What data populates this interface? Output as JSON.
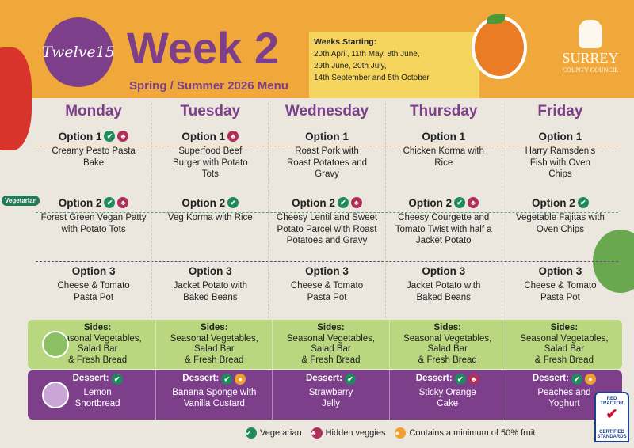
{
  "header": {
    "logo": "Twelve15",
    "title": "Week 2",
    "subtitle": "Spring / Summer 2026 Menu",
    "weeks_label": "Weeks Starting:",
    "weeks_lines": [
      "20th April, 11th  May, 8th June,",
      "29th June, 20th July,",
      "14th September and 5th October"
    ],
    "council": "SURREY",
    "council_sub": "COUNTY COUNCIL"
  },
  "vegetarian_tag": "Vegetarian",
  "colors": {
    "purple": "#7d3f8a",
    "orange": "#f1a83a",
    "green": "#1f8a5e",
    "hidden": "#b0305a",
    "sides": "#b9d77e"
  },
  "days": [
    {
      "name": "Monday",
      "options": [
        {
          "label": "Option 1",
          "dish": "Creamy Pesto Pasta Bake",
          "icons": [
            "vegetarian",
            "hidden-veggies"
          ]
        },
        {
          "label": "Option 2",
          "dish": "Forest Green Vegan Patty with Potato Tots",
          "icons": [
            "vegetarian",
            "hidden-veggies"
          ]
        },
        {
          "label": "Option 3",
          "dish": "Cheese & Tomato Pasta Pot",
          "icons": []
        }
      ],
      "sides_label": "Sides:",
      "sides": [
        "Seasonal Vegetables,",
        "Salad Bar",
        "& Fresh Bread"
      ],
      "dessert_label": "Dessert:",
      "dessert": [
        "Lemon",
        "Shortbread"
      ],
      "dessert_icons": [
        "vegetarian"
      ]
    },
    {
      "name": "Tuesday",
      "options": [
        {
          "label": "Option 1",
          "dish": "Superfood Beef Burger with Potato Tots",
          "icons": [
            "hidden-veggies"
          ]
        },
        {
          "label": "Option 2",
          "dish": "Veg Korma with Rice",
          "icons": [
            "vegetarian"
          ]
        },
        {
          "label": "Option 3",
          "dish": "Jacket Potato with Baked Beans",
          "icons": []
        }
      ],
      "sides_label": "Sides:",
      "sides": [
        "Seasonal Vegetables,",
        "Salad Bar",
        "& Fresh Bread"
      ],
      "dessert_label": "Dessert:",
      "dessert": [
        "Banana Sponge with",
        "Vanilla Custard"
      ],
      "dessert_icons": [
        "vegetarian",
        "fruit"
      ]
    },
    {
      "name": "Wednesday",
      "options": [
        {
          "label": "Option 1",
          "dish": "Roast Pork with Roast Potatoes and Gravy",
          "icons": []
        },
        {
          "label": "Option 2",
          "dish": "Cheesy Lentil and Sweet Potato Parcel with Roast Potatoes and Gravy",
          "icons": [
            "vegetarian",
            "hidden-veggies"
          ]
        },
        {
          "label": "Option 3",
          "dish": "Cheese & Tomato Pasta Pot",
          "icons": []
        }
      ],
      "sides_label": "Sides:",
      "sides": [
        "Seasonal Vegetables,",
        "Salad Bar",
        "& Fresh Bread"
      ],
      "dessert_label": "Dessert:",
      "dessert": [
        "Strawberry",
        "Jelly"
      ],
      "dessert_icons": [
        "vegetarian"
      ]
    },
    {
      "name": "Thursday",
      "options": [
        {
          "label": "Option 1",
          "dish": "Chicken Korma with Rice",
          "icons": []
        },
        {
          "label": "Option 2",
          "dish": "Cheesy Courgette and Tomato Twist with half a Jacket Potato",
          "icons": [
            "vegetarian",
            "hidden-veggies"
          ]
        },
        {
          "label": "Option 3",
          "dish": "Jacket Potato with Baked Beans",
          "icons": []
        }
      ],
      "sides_label": "Sides:",
      "sides": [
        "Seasonal Vegetables,",
        "Salad Bar",
        "& Fresh Bread"
      ],
      "dessert_label": "Dessert:",
      "dessert": [
        "Sticky Orange",
        "Cake"
      ],
      "dessert_icons": [
        "vegetarian",
        "hidden-veggies"
      ]
    },
    {
      "name": "Friday",
      "options": [
        {
          "label": "Option 1",
          "dish": "Harry Ramsden’s Fish with Oven Chips",
          "icons": []
        },
        {
          "label": "Option 2",
          "dish": "Vegetable Fajitas with Oven Chips",
          "icons": [
            "vegetarian"
          ]
        },
        {
          "label": "Option 3",
          "dish": "Cheese & Tomato Pasta Pot",
          "icons": []
        }
      ],
      "sides_label": "Sides:",
      "sides": [
        "Seasonal Vegetables,",
        "Salad Bar",
        "& Fresh Bread"
      ],
      "dessert_label": "Dessert:",
      "dessert": [
        "Peaches and",
        "Yoghurt"
      ],
      "dessert_icons": [
        "vegetarian",
        "fruit"
      ]
    }
  ],
  "legend": [
    {
      "icon": "vegetarian",
      "label": "Vegetarian"
    },
    {
      "icon": "hidden-veggies",
      "label": "Hidden veggies"
    },
    {
      "icon": "fruit",
      "label": "Contains a minimum of 50% fruit"
    }
  ],
  "red_tractor": {
    "top": "RED TRACTOR",
    "bottom": "CERTIFIED STANDARDS"
  }
}
